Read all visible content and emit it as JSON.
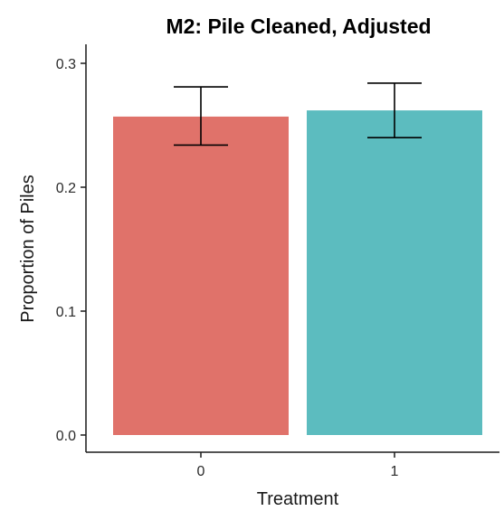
{
  "chart_data": {
    "type": "bar",
    "title": "M2: Pile Cleaned, Adjusted",
    "xlabel": "Treatment",
    "ylabel": "Proportion of Piles",
    "categories": [
      "0",
      "1"
    ],
    "values": [
      0.257,
      0.262
    ],
    "error_bars": [
      {
        "low": 0.234,
        "high": 0.281
      },
      {
        "low": 0.24,
        "high": 0.284
      }
    ],
    "colors": [
      "#e0726a",
      "#5cbcbf"
    ],
    "ylim": [
      0,
      0.32
    ],
    "yticks": [
      0.0,
      0.1,
      0.2,
      0.3
    ],
    "ytick_labels": [
      "0.0",
      "0.1",
      "0.2",
      "0.3"
    ],
    "grid": false,
    "legend": "none"
  }
}
